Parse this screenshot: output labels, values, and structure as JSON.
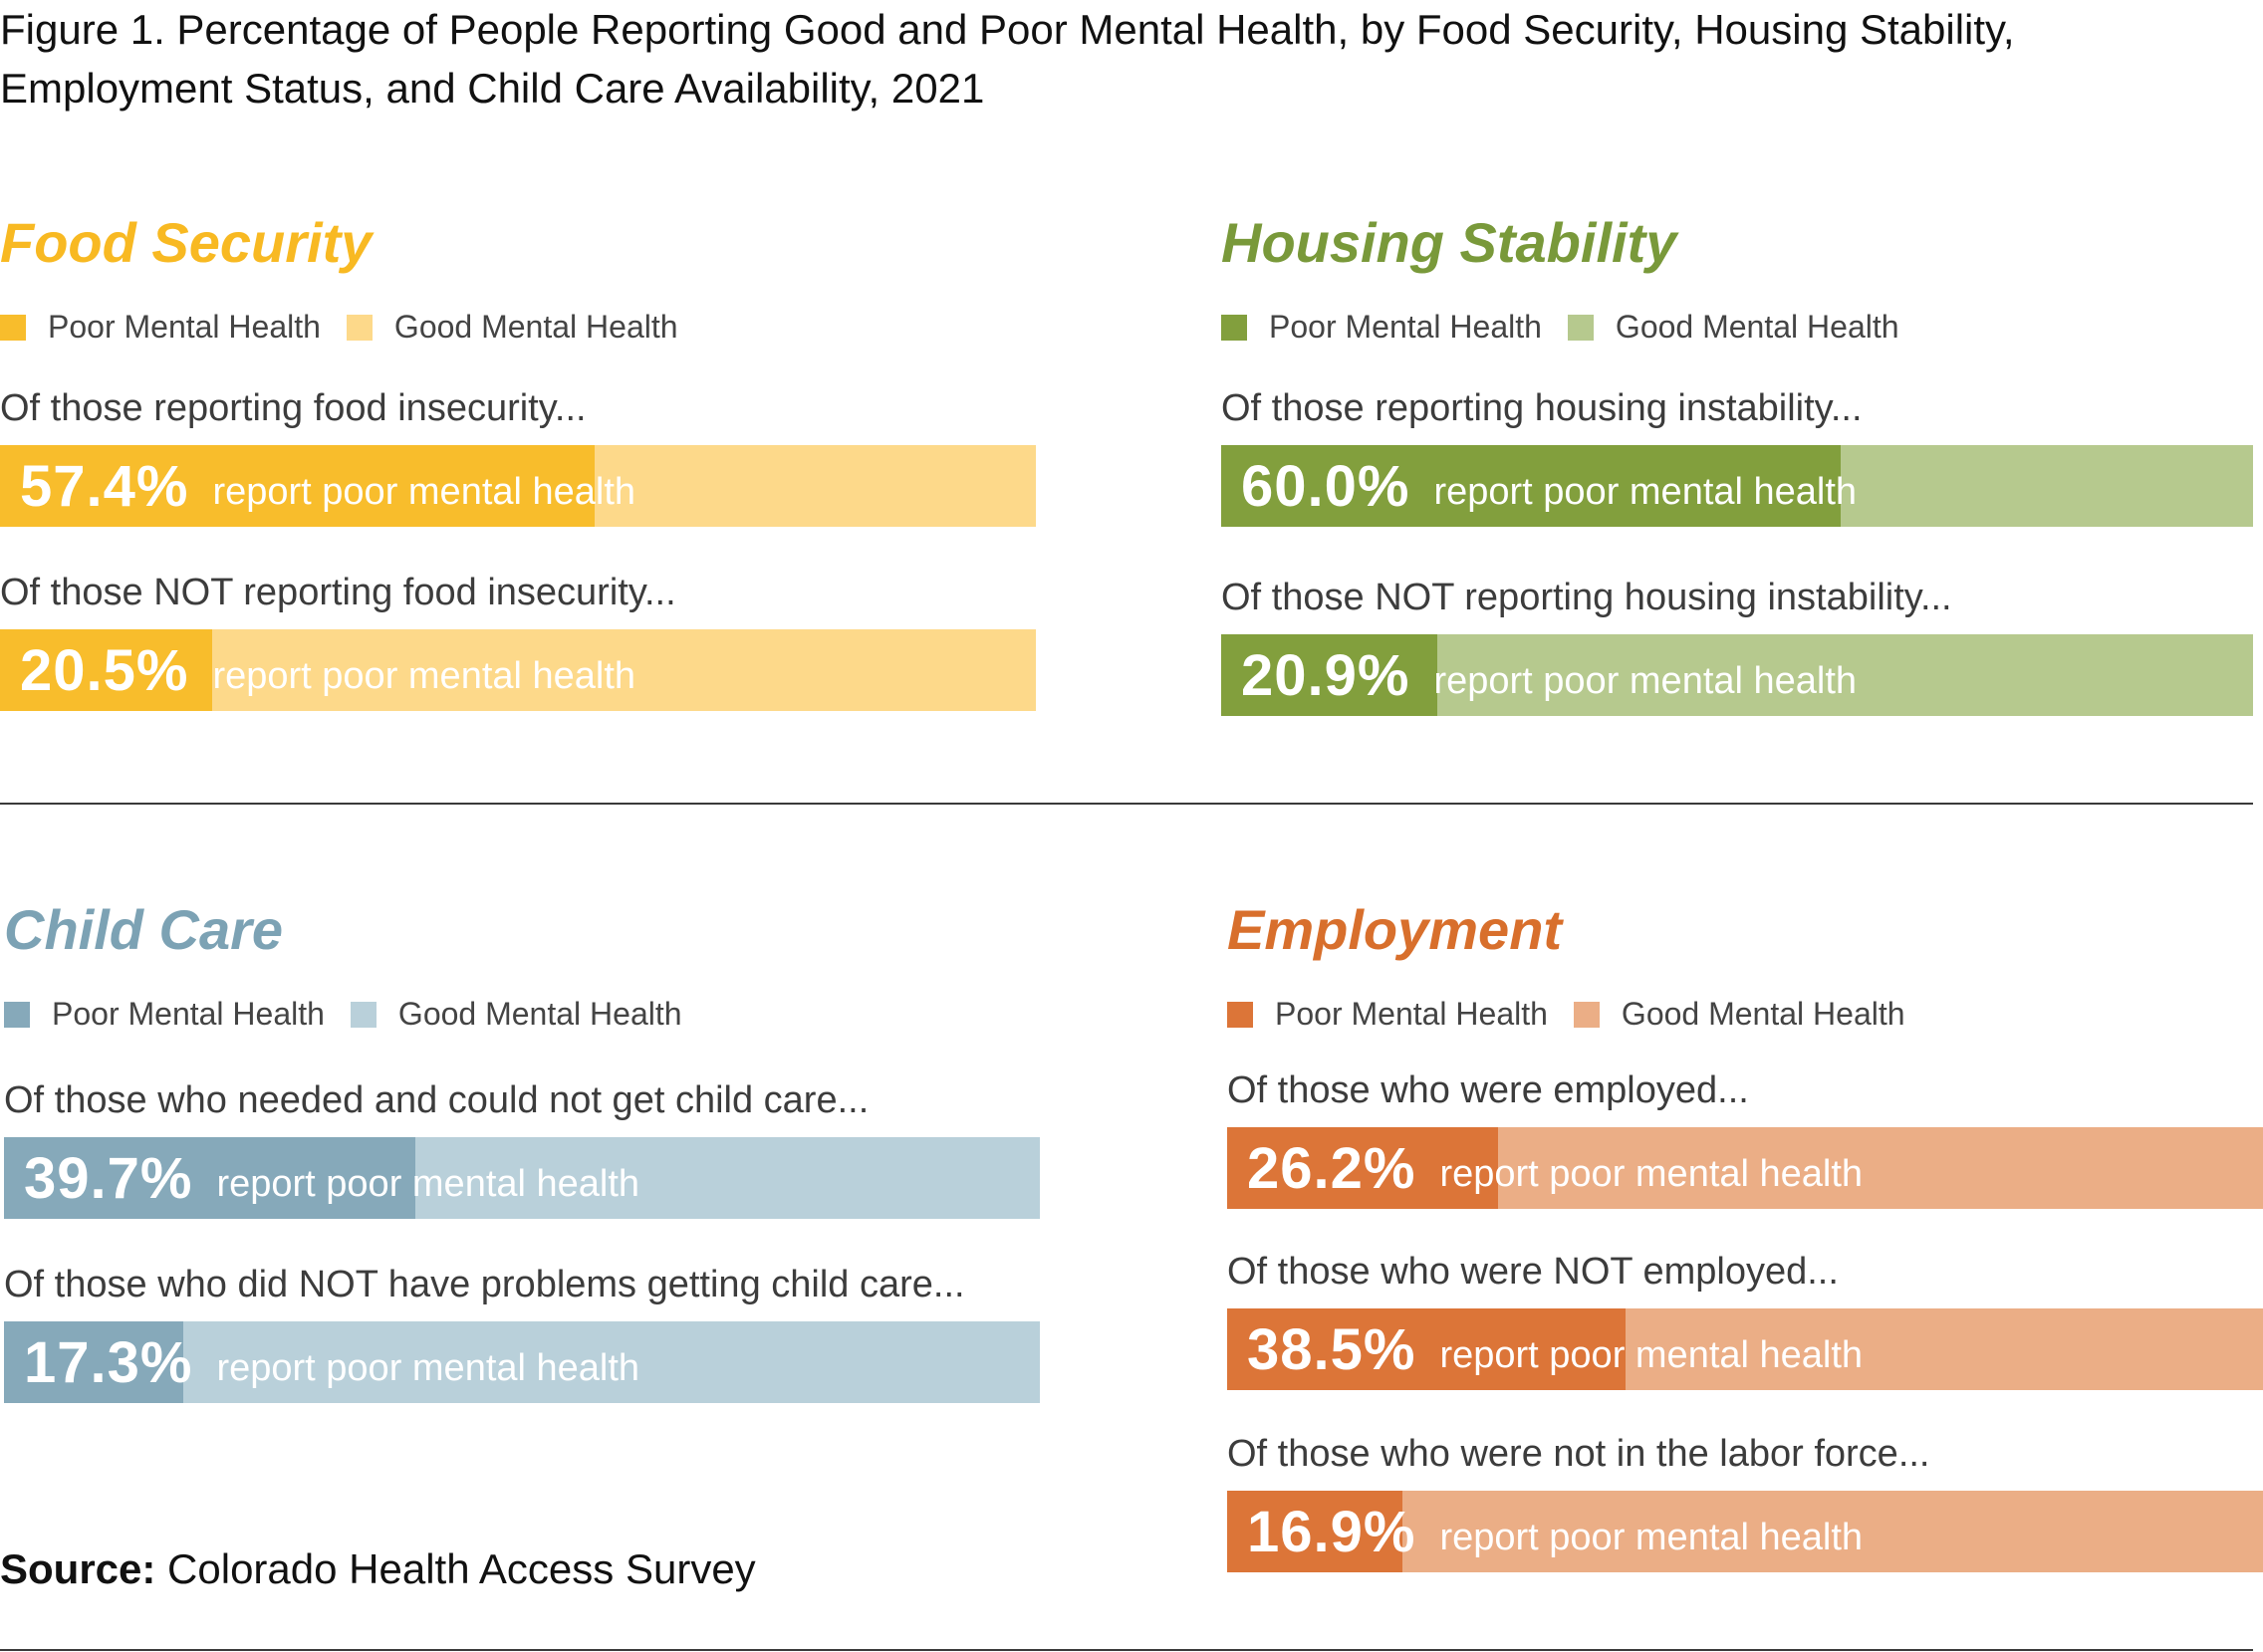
{
  "figure_title": "Figure 1. Percentage of People Reporting Good and Poor Mental Health, by Food Security, Housing Stability, Employment Status, and Child Care Availability, 2021",
  "source": {
    "label": "Source:",
    "text": "Colorado Health Access Survey"
  },
  "chart_data": [
    {
      "type": "bar",
      "title": "Food Security",
      "legend": [
        "Poor Mental Health",
        "Good Mental Health"
      ],
      "colors": {
        "title": "#f8b922",
        "poor": "#f8bd2c",
        "good": "#fdd98a"
      },
      "rows": [
        {
          "label": "Of those reporting food insecurity...",
          "value": 57.4,
          "value_label": "57.4%",
          "text": "report poor mental health"
        },
        {
          "label": "Of those NOT reporting food insecurity...",
          "value": 20.5,
          "value_label": "20.5%",
          "text": "report poor mental health"
        }
      ]
    },
    {
      "type": "bar",
      "title": "Housing Stability",
      "legend": [
        "Poor Mental Health",
        "Good Mental Health"
      ],
      "colors": {
        "title": "#79993a",
        "poor": "#829f3d",
        "good": "#b6c98e"
      },
      "rows": [
        {
          "label": "Of those reporting housing instability...",
          "value": 60.0,
          "value_label": "60.0%",
          "text": "report poor mental health"
        },
        {
          "label": "Of those NOT reporting housing instability...",
          "value": 20.9,
          "value_label": "20.9%",
          "text": "report poor mental health"
        }
      ]
    },
    {
      "type": "bar",
      "title": "Child Care",
      "legend": [
        "Poor Mental Health",
        "Good Mental Health"
      ],
      "colors": {
        "title": "#7ca2b4",
        "poor": "#86a9ba",
        "good": "#b9d0da"
      },
      "rows": [
        {
          "label": "Of those who needed and could not get child care...",
          "value": 39.7,
          "value_label": "39.7%",
          "text": "report poor mental health"
        },
        {
          "label": "Of those who did NOT have problems getting child care...",
          "value": 17.3,
          "value_label": "17.3%",
          "text": "report poor mental health"
        }
      ]
    },
    {
      "type": "bar",
      "title": "Employment",
      "legend": [
        "Poor Mental Health",
        "Good Mental Health"
      ],
      "colors": {
        "title": "#d86f2c",
        "poor": "#dc7538",
        "good": "#ebae86"
      },
      "rows": [
        {
          "label": "Of those who were employed...",
          "value": 26.2,
          "value_label": "26.2%",
          "text": "report poor mental health"
        },
        {
          "label": "Of those who were NOT employed...",
          "value": 38.5,
          "value_label": "38.5%",
          "text": "report poor mental health"
        },
        {
          "label": "Of those who were not in the labor force...",
          "value": 16.9,
          "value_label": "16.9%",
          "text": "report poor mental health"
        }
      ]
    }
  ]
}
